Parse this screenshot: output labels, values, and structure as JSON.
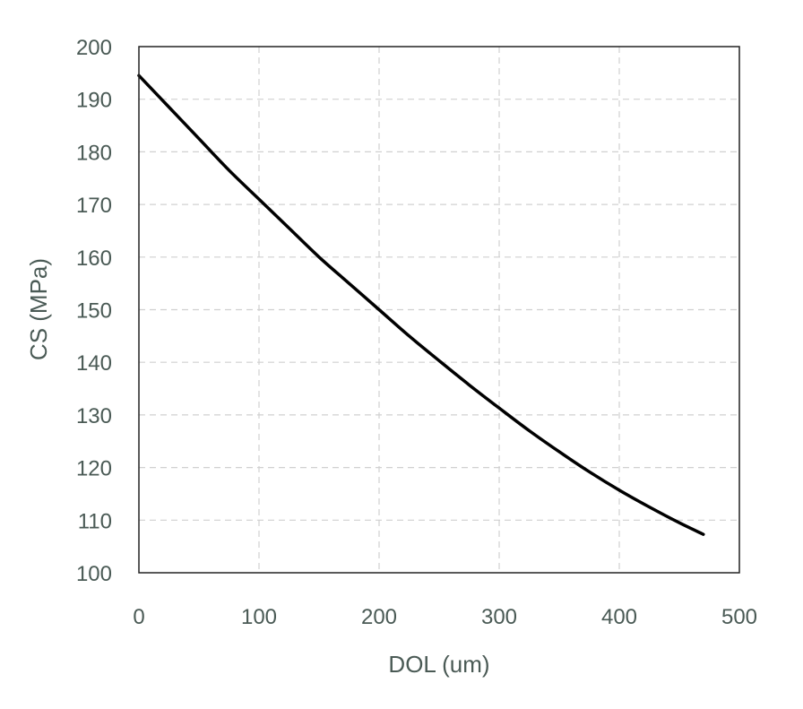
{
  "chart_data": {
    "type": "line",
    "title": "",
    "xlabel": "DOL (um)",
    "ylabel": "CS (MPa)",
    "xlim": [
      0,
      500
    ],
    "ylim": [
      100,
      200
    ],
    "xticks": [
      0,
      100,
      200,
      300,
      400,
      500
    ],
    "yticks": [
      100,
      110,
      120,
      130,
      140,
      150,
      160,
      170,
      180,
      190,
      200
    ],
    "grid": true,
    "legend": "none",
    "series": [
      {
        "x": [
          0,
          25,
          50,
          75,
          100,
          125,
          150,
          175,
          200,
          225,
          250,
          275,
          300,
          325,
          350,
          375,
          400,
          425,
          450,
          470
        ],
        "y": [
          194.5,
          188.5,
          182.5,
          176.5,
          171.0,
          165.5,
          160.0,
          155.0,
          150.0,
          145.0,
          140.3,
          135.7,
          131.3,
          127.0,
          123.0,
          119.2,
          115.7,
          112.5,
          109.5,
          107.3
        ]
      }
    ],
    "colors": {
      "line": "#000000",
      "axis_text": "#4a5a55",
      "grid": "#d0d0d0",
      "frame": "#222222"
    }
  }
}
